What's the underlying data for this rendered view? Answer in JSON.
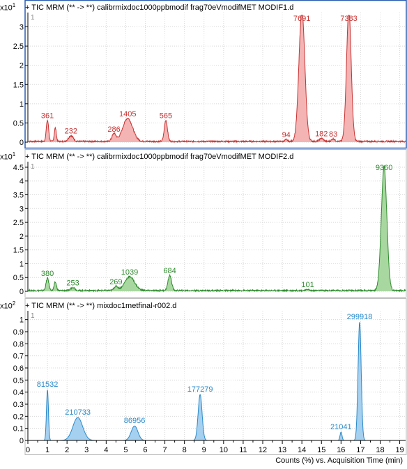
{
  "chart_data": [
    {
      "type": "line",
      "title": "+ TIC MRM (** -> **) calibrmixdoc1000ppbmodif frag70eVmodifMET MODIF1.d",
      "scale_exponent": "x10 1",
      "panel_number": "1",
      "ylim": [
        0,
        3.3
      ],
      "yticks": [
        "0",
        "0.5",
        "1",
        "1.5",
        "2",
        "2.5",
        "3"
      ],
      "color": "#c83232",
      "fill": "#f4b4b4",
      "peaks": [
        {
          "x": 1.0,
          "height": 0.55,
          "width": 0.06,
          "label": "361"
        },
        {
          "x": 1.4,
          "height": 0.35,
          "width": 0.05,
          "label": ""
        },
        {
          "x": 2.2,
          "height": 0.15,
          "width": 0.12,
          "label": "232"
        },
        {
          "x": 4.4,
          "height": 0.2,
          "width": 0.1,
          "label": "286"
        },
        {
          "x": 5.1,
          "height": 0.6,
          "width": 0.25,
          "label": "1405"
        },
        {
          "x": 7.05,
          "height": 0.55,
          "width": 0.08,
          "label": "565"
        },
        {
          "x": 13.2,
          "height": 0.05,
          "width": 0.06,
          "label": "94"
        },
        {
          "x": 14.0,
          "height": 3.4,
          "width": 0.15,
          "label": "7691"
        },
        {
          "x": 15.0,
          "height": 0.08,
          "width": 0.1,
          "label": "182"
        },
        {
          "x": 15.6,
          "height": 0.07,
          "width": 0.08,
          "label": "83"
        },
        {
          "x": 16.4,
          "height": 3.4,
          "width": 0.12,
          "label": "7383"
        }
      ]
    },
    {
      "type": "line",
      "title": "+ TIC MRM (** -> **) calibrmixdoc1000ppbmodif frag70eVmodifMET MODIF2.d",
      "scale_exponent": "x10 1",
      "panel_number": "1",
      "ylim": [
        0,
        4.6
      ],
      "yticks": [
        "0",
        "0.5",
        "1",
        "1.5",
        "2",
        "2.5",
        "3",
        "3.5",
        "4",
        "4.5"
      ],
      "color": "#2e8b2e",
      "fill": "#a8d8a0",
      "peaks": [
        {
          "x": 1.0,
          "height": 0.45,
          "width": 0.07,
          "label": "380"
        },
        {
          "x": 1.4,
          "height": 0.3,
          "width": 0.06,
          "label": ""
        },
        {
          "x": 2.3,
          "height": 0.12,
          "width": 0.1,
          "label": "253"
        },
        {
          "x": 4.5,
          "height": 0.15,
          "width": 0.1,
          "label": "269"
        },
        {
          "x": 5.2,
          "height": 0.5,
          "width": 0.25,
          "label": "1039"
        },
        {
          "x": 7.25,
          "height": 0.55,
          "width": 0.09,
          "label": "684"
        },
        {
          "x": 14.3,
          "height": 0.05,
          "width": 0.06,
          "label": "101"
        },
        {
          "x": 18.2,
          "height": 4.5,
          "width": 0.14,
          "label": "9360"
        }
      ]
    },
    {
      "type": "line",
      "title": "+ TIC MRM (** -> **) mixdoc1metfinal-r002.d",
      "scale_exponent": "x10 2",
      "panel_number": "1",
      "ylim": [
        0,
        1.05
      ],
      "yticks": [
        "0",
        "0.1",
        "0.2",
        "0.3",
        "0.4",
        "0.5",
        "0.6",
        "0.7",
        "0.8",
        "0.9",
        "1"
      ],
      "color": "#2a8ac8",
      "fill": "#a6d0f0",
      "peaks": [
        {
          "x": 1.0,
          "height": 0.42,
          "width": 0.05,
          "label": "81532"
        },
        {
          "x": 2.55,
          "height": 0.19,
          "width": 0.25,
          "label": "210733"
        },
        {
          "x": 5.45,
          "height": 0.12,
          "width": 0.17,
          "label": "86956"
        },
        {
          "x": 8.8,
          "height": 0.38,
          "width": 0.1,
          "label": "177279"
        },
        {
          "x": 16.0,
          "height": 0.07,
          "width": 0.05,
          "label": "21041"
        },
        {
          "x": 16.95,
          "height": 0.98,
          "width": 0.08,
          "label": "299918"
        }
      ]
    }
  ],
  "x_axis": {
    "label": "Counts (%) vs. Acquisition Time (min)",
    "xlim": [
      0,
      19.3
    ],
    "ticks": [
      "0",
      "1",
      "2",
      "3",
      "4",
      "5",
      "6",
      "7",
      "8",
      "9",
      "10",
      "11",
      "12",
      "13",
      "14",
      "15",
      "16",
      "17",
      "18",
      "19"
    ]
  }
}
